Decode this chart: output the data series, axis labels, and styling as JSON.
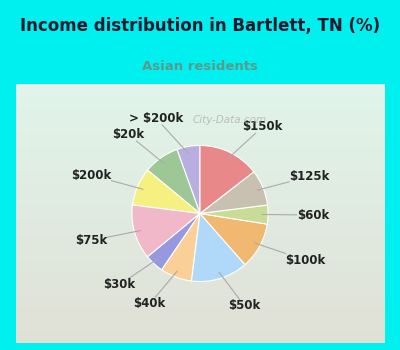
{
  "title": "Income distribution in Bartlett, TN (%)",
  "subtitle": "Asian residents",
  "title_color": "#1a1a2e",
  "subtitle_color": "#5b9a8a",
  "bg_top": "#00f0f0",
  "bg_chart": "#e0f0e8",
  "watermark": "City-Data.com",
  "labels": [
    "> $200k",
    "$20k",
    "$200k",
    "$75k",
    "$30k",
    "$40k",
    "$50k",
    "$100k",
    "$60k",
    "$125k",
    "$150k"
  ],
  "sizes": [
    5.5,
    8.5,
    9.0,
    13.0,
    4.5,
    7.5,
    13.5,
    11.0,
    4.5,
    8.5,
    14.5
  ],
  "colors": [
    "#b8aee0",
    "#9dc896",
    "#f5f080",
    "#f0b8c8",
    "#9898e0",
    "#fad098",
    "#b0d8f8",
    "#f0b870",
    "#c8dc98",
    "#c8c0b0",
    "#e88888"
  ],
  "startangle": 90,
  "label_fontsize": 8.5,
  "label_color": "#222222"
}
